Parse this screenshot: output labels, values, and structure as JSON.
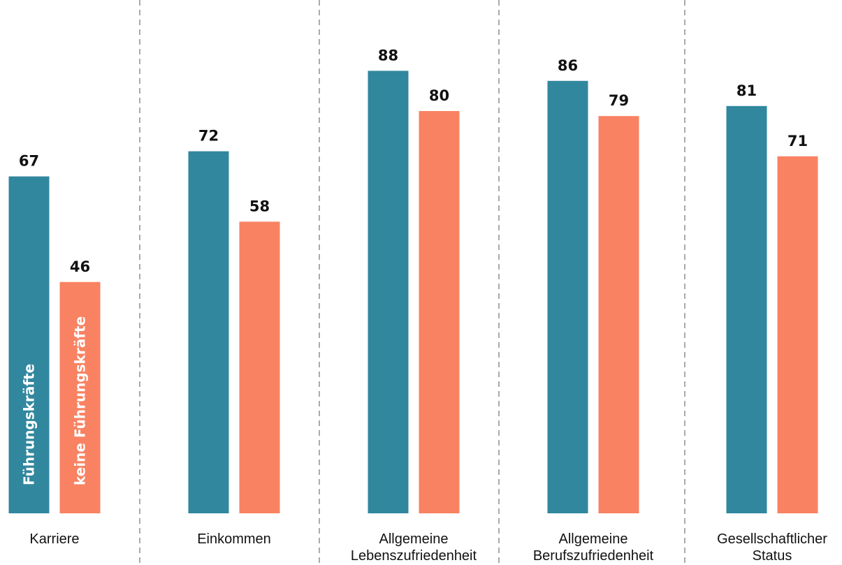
{
  "chart_data": {
    "type": "bar",
    "title": "",
    "xlabel": "",
    "ylabel": "",
    "ylim": [
      0,
      100
    ],
    "grid": false,
    "legend": "in-bar labels",
    "categories": [
      [
        "Karriere"
      ],
      [
        "Einkommen"
      ],
      [
        "Allgemeine",
        "Lebenszufriedenheit"
      ],
      [
        "Allgemeine",
        "Berufszufriedenheit"
      ],
      [
        "Gesellschaftlicher",
        "Status"
      ]
    ],
    "series": [
      {
        "name": "Führungskräfte",
        "color": "#31879e",
        "values": [
          67,
          72,
          88,
          86,
          81
        ]
      },
      {
        "name": "keine Führungskräfte",
        "color": "#f98262",
        "values": [
          46,
          58,
          80,
          79,
          71
        ]
      }
    ]
  }
}
